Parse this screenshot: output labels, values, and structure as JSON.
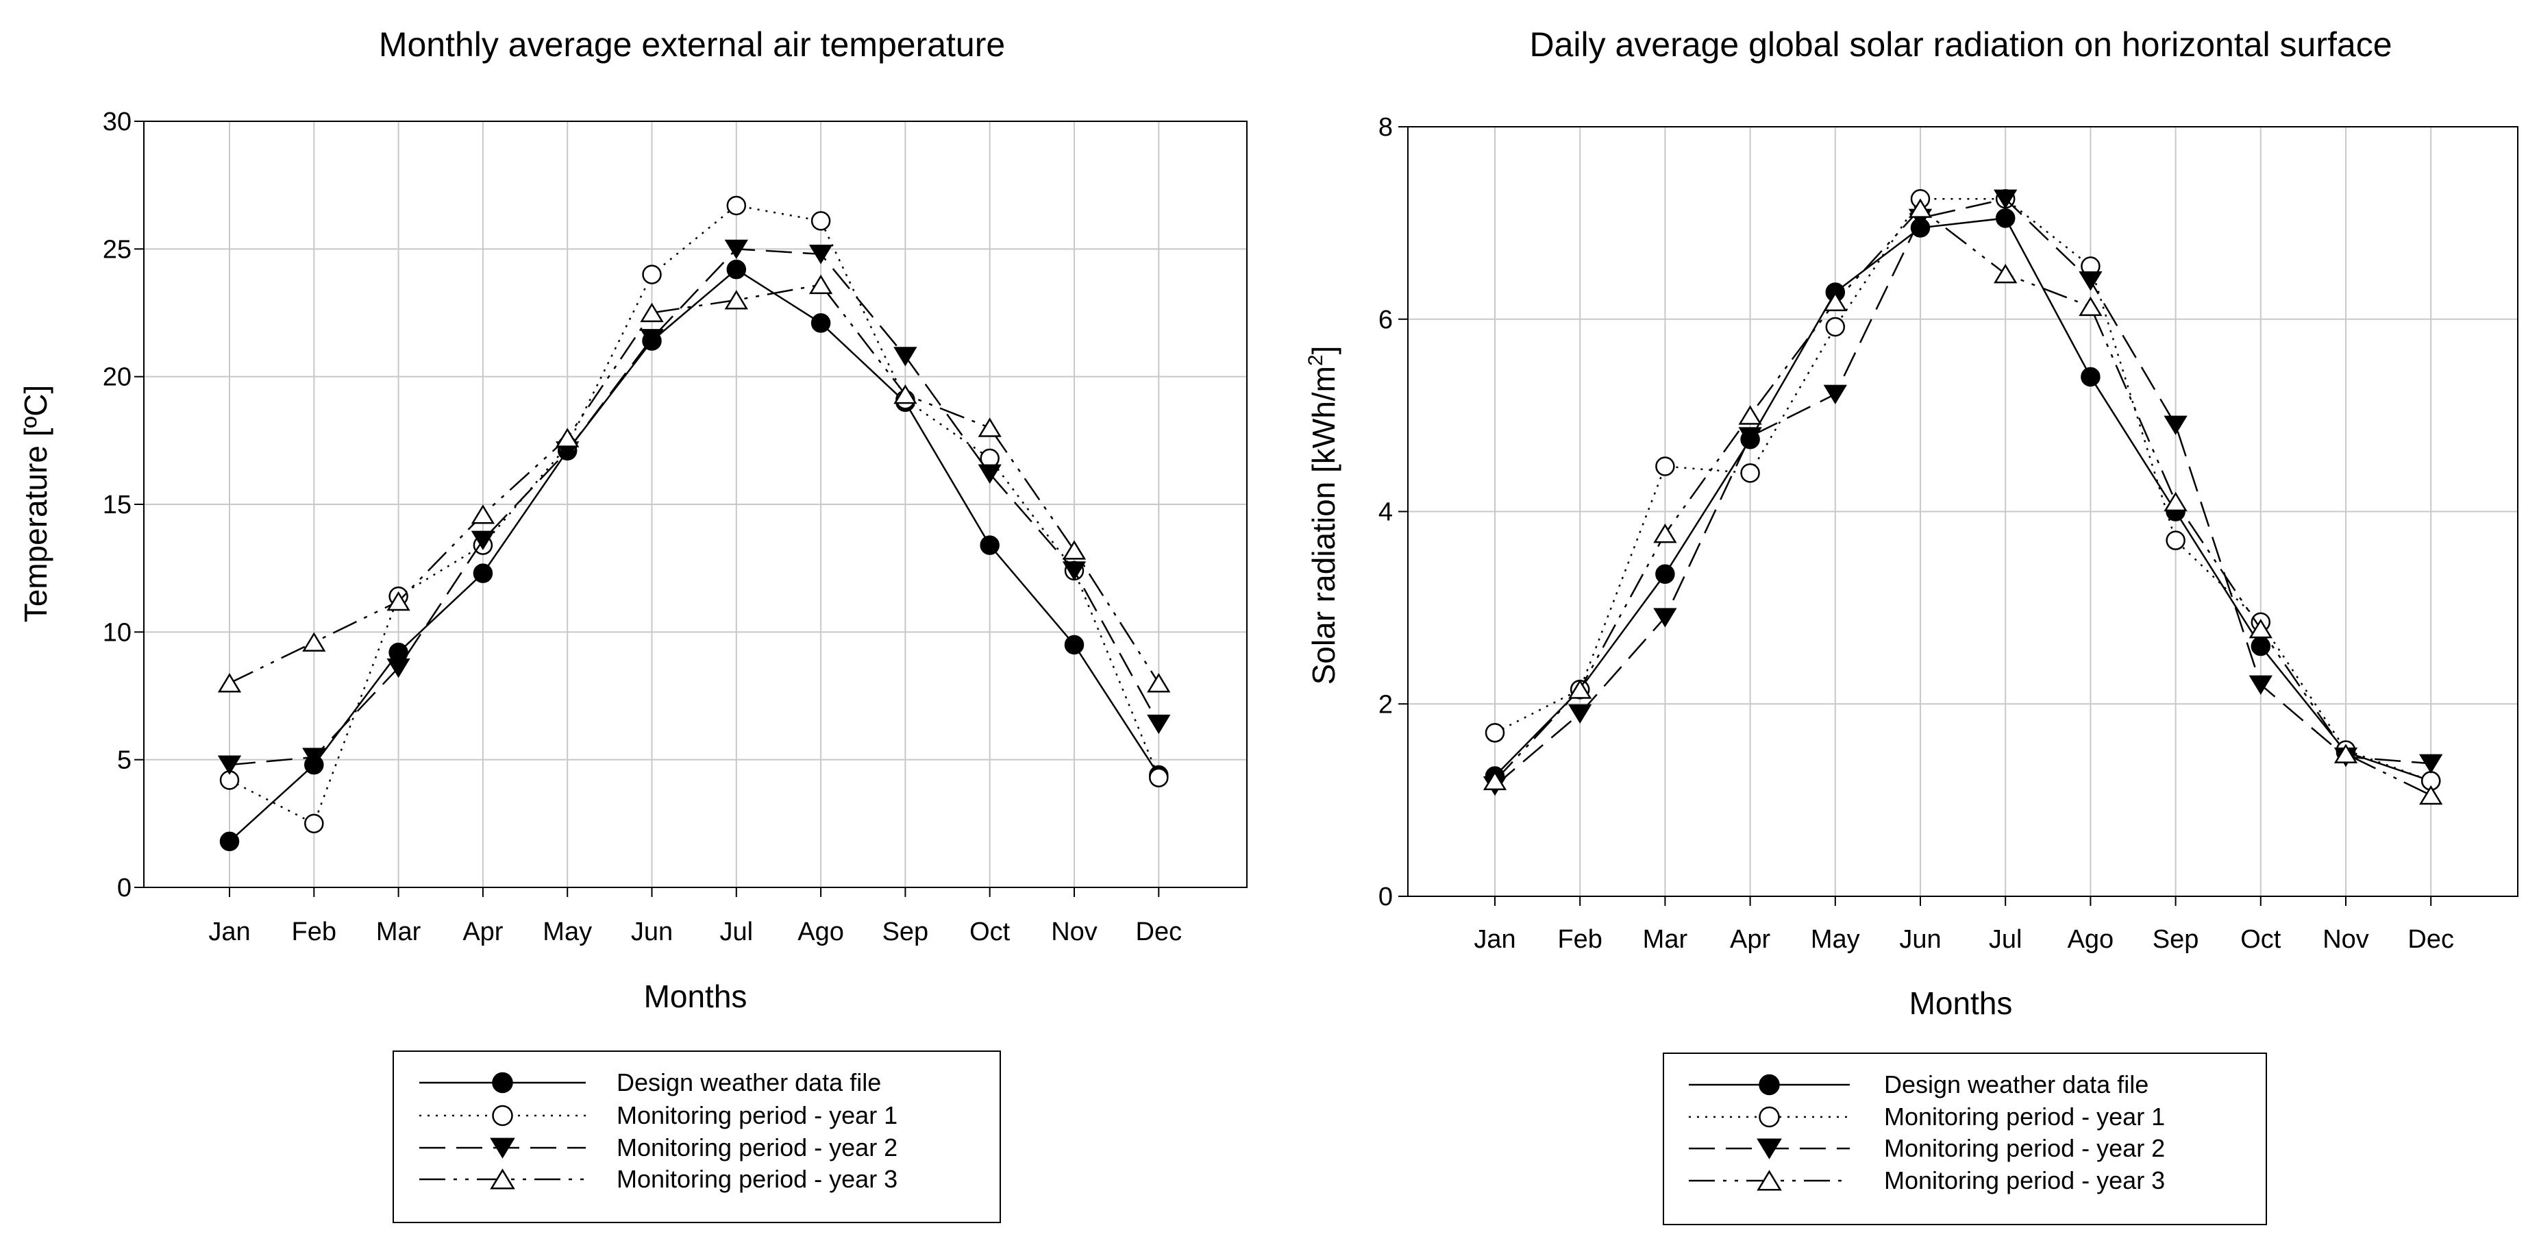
{
  "chart_data": [
    {
      "type": "line",
      "title": "Monthly average external air temperature",
      "xlabel": "Months",
      "ylabel": "Temperature [ºC]",
      "ylim": [
        0,
        30
      ],
      "yticks": [
        0,
        5,
        10,
        15,
        20,
        25,
        30
      ],
      "grid": true,
      "legend_position": "bottom",
      "categories": [
        "Jan",
        "Feb",
        "Mar",
        "Apr",
        "May",
        "Jun",
        "Jul",
        "Ago",
        "Sep",
        "Oct",
        "Nov",
        "Dec"
      ],
      "series": [
        {
          "name": "Design weather data file",
          "marker": "filled-circle",
          "line": "solid",
          "values": [
            1.8,
            4.8,
            9.2,
            12.3,
            17.1,
            21.4,
            24.2,
            22.1,
            19.0,
            13.4,
            9.5,
            4.4
          ]
        },
        {
          "name": "Monitoring period - year 1",
          "marker": "open-circle",
          "line": "dotted",
          "values": [
            4.2,
            2.5,
            11.4,
            13.4,
            17.3,
            24.0,
            26.7,
            26.1,
            19.1,
            16.8,
            12.4,
            4.3
          ]
        },
        {
          "name": "Monitoring period - year 2",
          "marker": "filled-triangle-down",
          "line": "dashed",
          "values": [
            4.8,
            5.1,
            8.6,
            13.6,
            17.1,
            21.5,
            25.0,
            24.8,
            20.8,
            16.2,
            12.4,
            6.4
          ]
        },
        {
          "name": "Monitoring period - year 3",
          "marker": "open-triangle-up",
          "line": "dash-dot-dot",
          "values": [
            8.0,
            9.6,
            11.2,
            14.6,
            17.6,
            22.5,
            23.0,
            23.6,
            19.3,
            18.0,
            13.2,
            8.0
          ]
        }
      ]
    },
    {
      "type": "line",
      "title": "Daily average global solar radiation on horizontal surface",
      "xlabel": "Months",
      "ylabel": "Solar radiation [kWh/m",
      "ylabel_sup": "2",
      "ylabel_end": "]",
      "ylim": [
        0,
        8
      ],
      "yticks": [
        0,
        2,
        4,
        6,
        8
      ],
      "grid": true,
      "legend_position": "bottom",
      "categories": [
        "Jan",
        "Feb",
        "Mar",
        "Apr",
        "May",
        "Jun",
        "Jul",
        "Ago",
        "Sep",
        "Oct",
        "Nov",
        "Dec"
      ],
      "series": [
        {
          "name": "Design weather data file",
          "marker": "filled-circle",
          "line": "solid",
          "values": [
            1.25,
            2.15,
            3.35,
            4.75,
            6.28,
            6.95,
            7.05,
            5.4,
            4.0,
            2.6,
            1.5,
            1.2
          ]
        },
        {
          "name": "Monitoring period - year 1",
          "marker": "open-circle",
          "line": "dotted",
          "values": [
            1.7,
            2.15,
            4.47,
            4.4,
            5.92,
            7.25,
            7.25,
            6.55,
            3.7,
            2.85,
            1.52,
            1.2
          ]
        },
        {
          "name": "Monitoring period - year 2",
          "marker": "filled-triangle-down",
          "line": "dashed",
          "values": [
            1.15,
            1.9,
            2.9,
            4.78,
            5.22,
            7.05,
            7.25,
            6.4,
            4.9,
            2.2,
            1.45,
            1.38
          ]
        },
        {
          "name": "Monitoring period - year 3",
          "marker": "open-triangle-up",
          "line": "dash-dot-dot",
          "values": [
            1.2,
            2.15,
            3.77,
            5.0,
            6.18,
            7.15,
            6.47,
            6.13,
            4.1,
            2.78,
            1.48,
            1.05
          ]
        }
      ]
    }
  ]
}
